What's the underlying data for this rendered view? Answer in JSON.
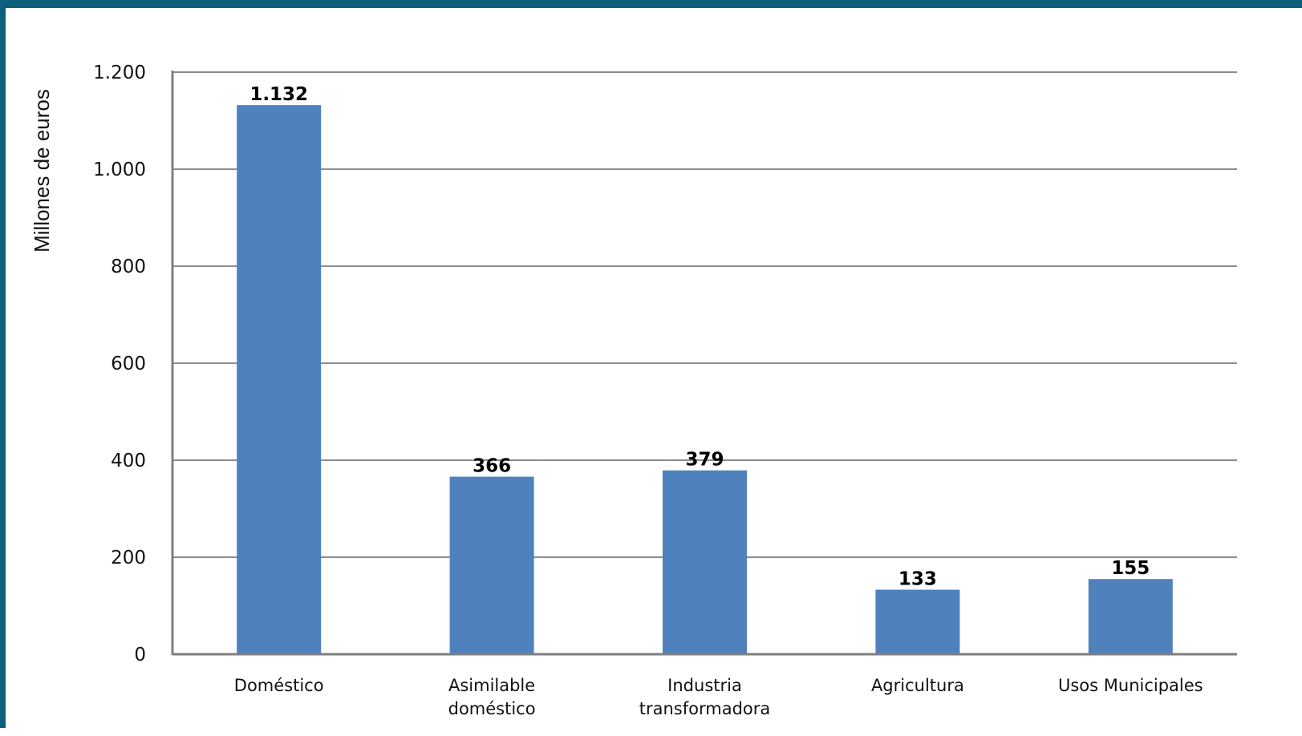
{
  "colors": {
    "frame": "#0d5f7a",
    "bar": "#4f81bd",
    "grid": "#8c8c8c",
    "axis": "#7f7f7f"
  },
  "chart_data": {
    "type": "bar",
    "title": "",
    "xlabel": "",
    "ylabel": "Millones de euros",
    "ylim": [
      0,
      1200
    ],
    "yticks": [
      0,
      200,
      400,
      600,
      800,
      1000,
      1200
    ],
    "ytick_labels": [
      "0",
      "200",
      "400",
      "600",
      "800",
      "1.000",
      "1.200"
    ],
    "categories": [
      [
        "Doméstico"
      ],
      [
        "Asimilable",
        "doméstico"
      ],
      [
        "Industria",
        "transformadora"
      ],
      [
        "Agricultura"
      ],
      [
        "Usos Municipales"
      ]
    ],
    "values": [
      1132,
      366,
      379,
      133,
      155
    ],
    "value_labels": [
      "1.132",
      "366",
      "379",
      "133",
      "155"
    ],
    "grid": true,
    "legend": "none"
  }
}
